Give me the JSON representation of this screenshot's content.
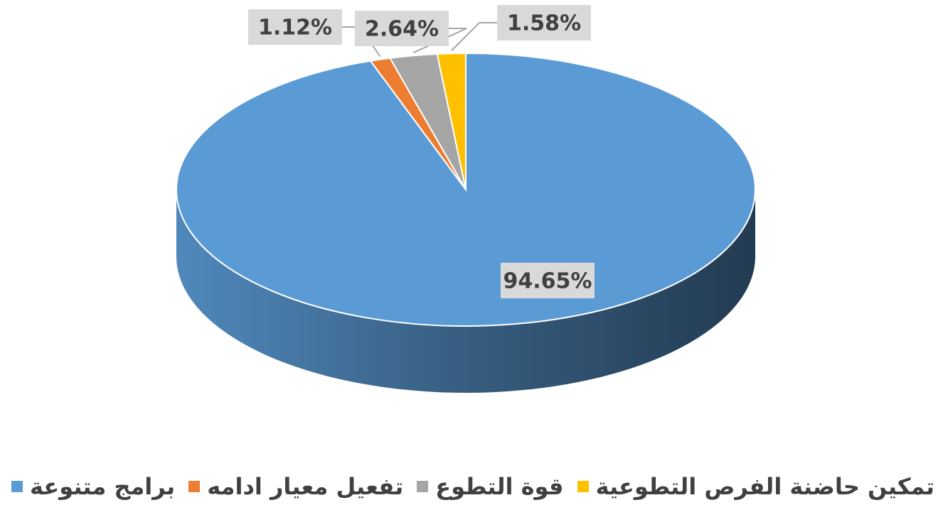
{
  "chart_data": {
    "type": "pie3d",
    "categories": [
      "برامج متنوعة",
      "تفعيل معيار ادامه",
      "قوة التطوع",
      "تمكين حاضنة الفرص التطوعية"
    ],
    "values": [
      94.65,
      1.12,
      2.64,
      1.58
    ],
    "value_labels": [
      "94.65%",
      "1.12%",
      "2.64%",
      "1.58%"
    ],
    "colors": [
      "#5b9bd5",
      "#ed7d31",
      "#a5a5a5",
      "#ffc000"
    ],
    "legend": "bottom"
  }
}
